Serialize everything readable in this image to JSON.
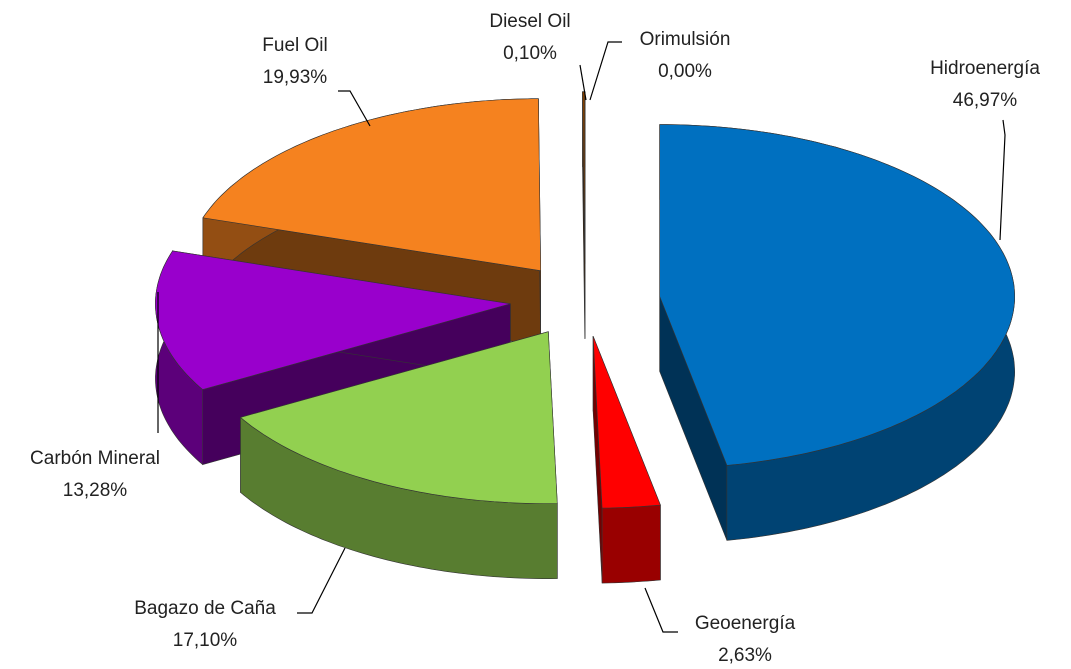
{
  "chart_data": {
    "type": "pie",
    "categories": [
      "Hidroenergía",
      "Geoenergía",
      "Bagazo de Caña",
      "Carbón Mineral",
      "Fuel Oil",
      "Diesel Oil",
      "Orimulsión"
    ],
    "values": [
      46.97,
      2.63,
      17.1,
      13.28,
      19.93,
      0.1,
      0.0
    ],
    "value_labels": [
      "46,97%",
      "2,63%",
      "17,10%",
      "13,28%",
      "19,93%",
      "0,10%",
      "0,00%"
    ],
    "colors": [
      "#0070c0",
      "#ff0000",
      "#92d050",
      "#9900cc",
      "#f5821f",
      "#7f3f00",
      "#4f6228"
    ]
  }
}
